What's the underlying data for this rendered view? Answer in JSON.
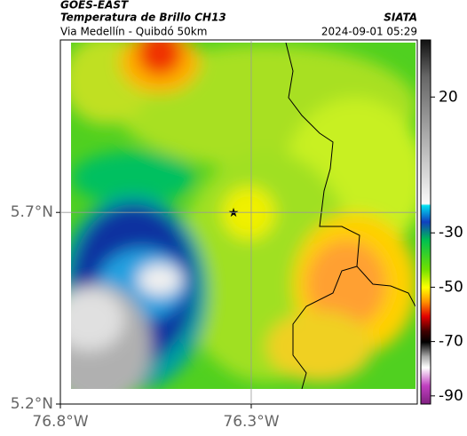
{
  "header": {
    "satellite": "GOES-EAST",
    "product": "Temperatura de Brillo CH13",
    "organization": "SIATA",
    "subtitle": "Via Medellín - Quibdó 50km",
    "timestamp": "2024-09-01 05:29"
  },
  "map": {
    "xlim": [
      -76.8,
      -75.865
    ],
    "ylim": [
      5.2,
      6.15
    ],
    "xticks": [
      {
        "value": -76.8,
        "label": "76.8°W"
      },
      {
        "value": -76.3,
        "label": "76.3°W"
      }
    ],
    "yticks": [
      {
        "value": 5.7,
        "label": "5.7°N"
      },
      {
        "value": 5.2,
        "label": "5.2°N"
      }
    ]
  },
  "colorbar": {
    "lim": [
      -93,
      41
    ],
    "ticks": [
      20,
      -30,
      -50,
      -70,
      -90
    ]
  }
}
